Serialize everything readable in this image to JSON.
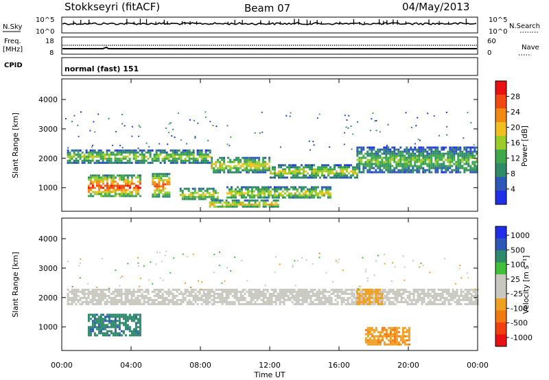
{
  "header": {
    "station": "Stokkseyri (fitACF)",
    "beam": "Beam 07",
    "date": "04/May/2013"
  },
  "top_panels": {
    "nsky_label": "N.Sky",
    "nsky_ticks": [
      "10^5",
      "10^0"
    ],
    "nsearch_label": "N.Search",
    "nsearch_ticks": [
      "10^5",
      "10^0"
    ],
    "freq_label_1": "Freq.",
    "freq_label_2": "[MHz]",
    "freq_ticks": [
      "18",
      "8"
    ],
    "nave_label": "Nave",
    "nave_ticks": [
      "60",
      "0"
    ],
    "cpid_label": "CPID",
    "cpid_value": "normal (fast) 151"
  },
  "colors": {
    "power_scale": [
      "#1f2fe8",
      "#2e58b8",
      "#2f8a6a",
      "#3fa84a",
      "#9ccc2a",
      "#f0c020",
      "#f08a10",
      "#f04a10",
      "#e81010"
    ],
    "velocity_scale": [
      "#1f2fe8",
      "#2e58b8",
      "#2f8a6a",
      "#3fbf3a",
      "#c8c8c0",
      "#c8c8c0",
      "#f0a020",
      "#f07a10",
      "#f04010",
      "#e81010"
    ],
    "ground_scatter": "#c8c8c0"
  },
  "chart_data": [
    {
      "type": "heatmap",
      "panel": "power",
      "ylabel": "Slant Range [km]",
      "yticks": [
        1000,
        2000,
        3000,
        4000
      ],
      "ylim": [
        200,
        4700
      ],
      "xlim": [
        0,
        24
      ],
      "colorbar_label": "Power [dB]",
      "colorbar_ticks": [
        "28",
        "24",
        "20",
        "16",
        "12",
        "8",
        "4"
      ],
      "colorbar_range": [
        0,
        32
      ],
      "bands": [
        {
          "t0": 0.3,
          "t1": 8.6,
          "r0": 1850,
          "r1": 2300,
          "power": 14
        },
        {
          "t0": 8.6,
          "t1": 12,
          "r0": 1550,
          "r1": 2050,
          "power": 17
        },
        {
          "t0": 12,
          "t1": 17,
          "r0": 1350,
          "r1": 1800,
          "power": 15
        },
        {
          "t0": 17,
          "t1": 24,
          "r0": 1500,
          "r1": 2400,
          "power": 12
        },
        {
          "t0": 1.5,
          "t1": 4.5,
          "r0": 700,
          "r1": 1450,
          "power": 24
        },
        {
          "t0": 5.2,
          "t1": 6.2,
          "r0": 700,
          "r1": 1500,
          "power": 22
        },
        {
          "t0": 6.8,
          "t1": 9.0,
          "r0": 600,
          "r1": 1000,
          "power": 16
        },
        {
          "t0": 9.5,
          "t1": 15.5,
          "r0": 650,
          "r1": 1050,
          "power": 16
        },
        {
          "t0": 8.5,
          "t1": 12.5,
          "r0": 350,
          "r1": 600,
          "power": 18
        }
      ]
    },
    {
      "type": "heatmap",
      "panel": "velocity",
      "ylabel": "Slant Range [km]",
      "xlabel": "Time UT",
      "yticks": [
        1000,
        2000,
        3000,
        4000
      ],
      "ylim": [
        200,
        4700
      ],
      "xlim": [
        0,
        24
      ],
      "xticks": [
        "00:00",
        "04:00",
        "08:00",
        "12:00",
        "16:00",
        "20:00",
        "00:00"
      ],
      "colorbar_label": "Velocity [m s⁻¹]",
      "colorbar_ticks": [
        "1000",
        "500",
        "100",
        "25",
        "-25",
        "-100",
        "-500",
        "-1000"
      ],
      "bands": [
        {
          "t0": 0.3,
          "t1": 24,
          "r0": 1750,
          "r1": 2300,
          "velocity": 0
        },
        {
          "t0": 1.5,
          "t1": 4.5,
          "r0": 700,
          "r1": 1450,
          "velocity": 600
        },
        {
          "t0": 17,
          "t1": 18.5,
          "r0": 1800,
          "r1": 2300,
          "velocity": -300
        },
        {
          "t0": 17.5,
          "t1": 20,
          "r0": 400,
          "r1": 1000,
          "velocity": -400
        }
      ]
    }
  ]
}
